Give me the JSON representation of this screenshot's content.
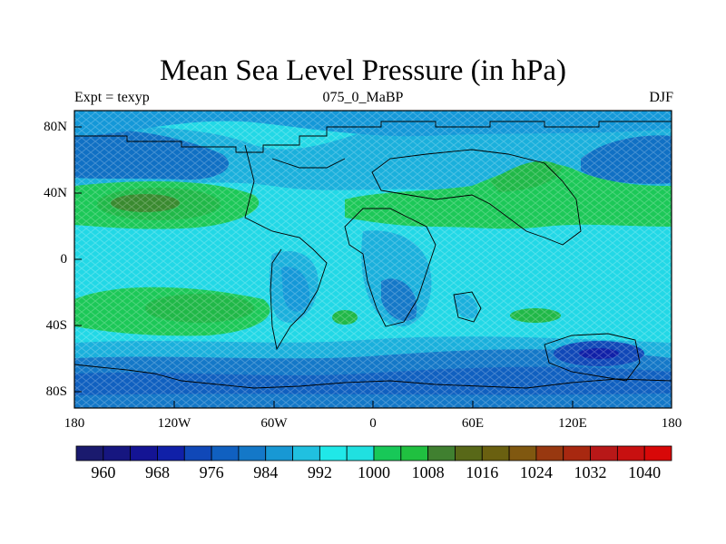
{
  "title": "Mean Sea Level Pressure (in hPa)",
  "left_label": "Expt = texyp",
  "center_label": "075_0_MaBP",
  "right_label": "DJF",
  "lat_ticks": [
    "80N",
    "40N",
    "0",
    "40S",
    "80S"
  ],
  "lon_ticks": [
    "180",
    "120W",
    "60W",
    "0",
    "60E",
    "120E",
    "180"
  ],
  "colorbar": {
    "labels": [
      "960",
      "968",
      "976",
      "984",
      "992",
      "1000",
      "1008",
      "1016",
      "1024",
      "1032",
      "1040"
    ],
    "colors": [
      "#1a1a6e",
      "#161680",
      "#141494",
      "#1020a8",
      "#1048b8",
      "#1060c0",
      "#1478c8",
      "#1898d4",
      "#20c0e0",
      "#20e8e8",
      "#20e0e0",
      "#18c858",
      "#20c040",
      "#408030",
      "#586818",
      "#6a6010",
      "#805810",
      "#983810",
      "#a82810",
      "#b81818",
      "#c81010",
      "#d80808"
    ]
  },
  "chart_data": {
    "type": "heatmap",
    "title": "Mean Sea Level Pressure (in hPa)",
    "units": "hPa",
    "xlim": [
      -180,
      180
    ],
    "ylim": [
      -90,
      90
    ],
    "contour_levels": [
      960,
      964,
      968,
      972,
      976,
      980,
      984,
      988,
      992,
      996,
      1000,
      1004,
      1008,
      1012,
      1016,
      1020,
      1024,
      1028,
      1032,
      1036,
      1040
    ],
    "field_description_by_latitude": [
      {
        "lat": 80,
        "hPa": 996
      },
      {
        "lat": 60,
        "hPa": 984
      },
      {
        "lat": 35,
        "hPa": 1012
      },
      {
        "lat": 20,
        "hPa": 1002
      },
      {
        "lat": 0,
        "hPa": 1000
      },
      {
        "lat": -30,
        "hPa": 1010
      },
      {
        "lat": -55,
        "hPa": 988
      },
      {
        "lat": -75,
        "hPa": 986
      }
    ]
  }
}
